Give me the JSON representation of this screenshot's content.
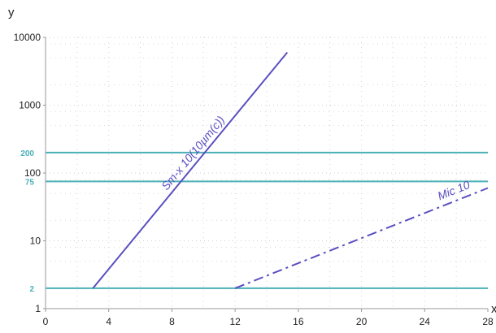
{
  "chart_data": {
    "type": "line",
    "title": "",
    "xlabel": "x",
    "ylabel": "y",
    "xlim": [
      0,
      28
    ],
    "ylim": [
      1,
      10000
    ],
    "yscale": "log",
    "grid": "dotted",
    "x_ticks": [
      0,
      4,
      8,
      12,
      16,
      20,
      24,
      28
    ],
    "y_ticks": [
      {
        "value": 1,
        "label": "1"
      },
      {
        "value": 10,
        "label": "10"
      },
      {
        "value": 100,
        "label": "100"
      },
      {
        "value": 1000,
        "label": "1000"
      },
      {
        "value": 10000,
        "label": "10000"
      }
    ],
    "reference_lines": [
      {
        "value": 200,
        "label": "200",
        "color": "#4bb0b8"
      },
      {
        "value": 75,
        "label": "75",
        "color": "#4bb0b8"
      },
      {
        "value": 2,
        "label": "2",
        "color": "#4bb0b8"
      }
    ],
    "series": [
      {
        "name": "Sm-x 10(10µm(c))",
        "style": "solid",
        "color": "#5a4fc0",
        "points": [
          [
            3,
            2
          ],
          [
            15.3,
            6000
          ]
        ]
      },
      {
        "name": "Mic 10",
        "style": "dash-dot",
        "color": "#5a4fc0",
        "points": [
          [
            12,
            2
          ],
          [
            28,
            60
          ]
        ]
      }
    ]
  }
}
